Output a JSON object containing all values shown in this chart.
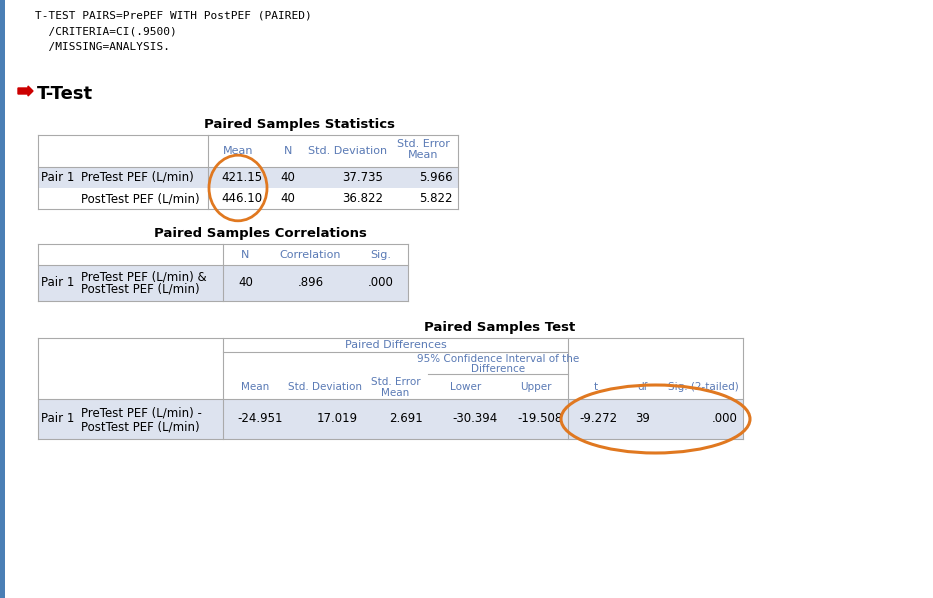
{
  "bg_color": "#ffffff",
  "code_lines": [
    "T-TEST PAIRS=PrePEF WITH PostPEF (PAIRED)",
    "  /CRITERIA=CI(.9500)",
    "  /MISSING=ANALYSIS."
  ],
  "section_title": "T-Test",
  "table1_title": "Paired Samples Statistics",
  "table2_title": "Paired Samples Correlations",
  "table3_title": "Paired Samples Test",
  "table3_subheader1": "Paired Differences",
  "table1_rows": [
    [
      "Pair 1",
      "PreTest PEF (L/min)",
      "421.15",
      "40",
      "37.735",
      "5.966"
    ],
    [
      "",
      "PostTest PEF (L/min)",
      "446.10",
      "40",
      "36.822",
      "5.822"
    ]
  ],
  "table2_rows": [
    [
      "Pair 1",
      "PreTest PEF (L/min) &\nPostTest PEF (L/min)",
      "40",
      ".896",
      ".000"
    ]
  ],
  "table3_rows": [
    [
      "Pair 1",
      "PreTest PEF (L/min) -\nPostTest PEF (L/min)",
      "-24.951",
      "17.019",
      "2.691",
      "-30.394",
      "-19.508",
      "-9.272",
      "39",
      ".000"
    ]
  ],
  "arrow_color": "#cc0000",
  "ellipse_color": "#e07820",
  "border_color": "#aaaaaa",
  "blue_bar_color": "#4a7fb5",
  "header_text_color": "#5a7ab5",
  "data_text_color": "#000000",
  "row_bg_odd": "#dde3ef",
  "row_bg_even": "#ffffff"
}
